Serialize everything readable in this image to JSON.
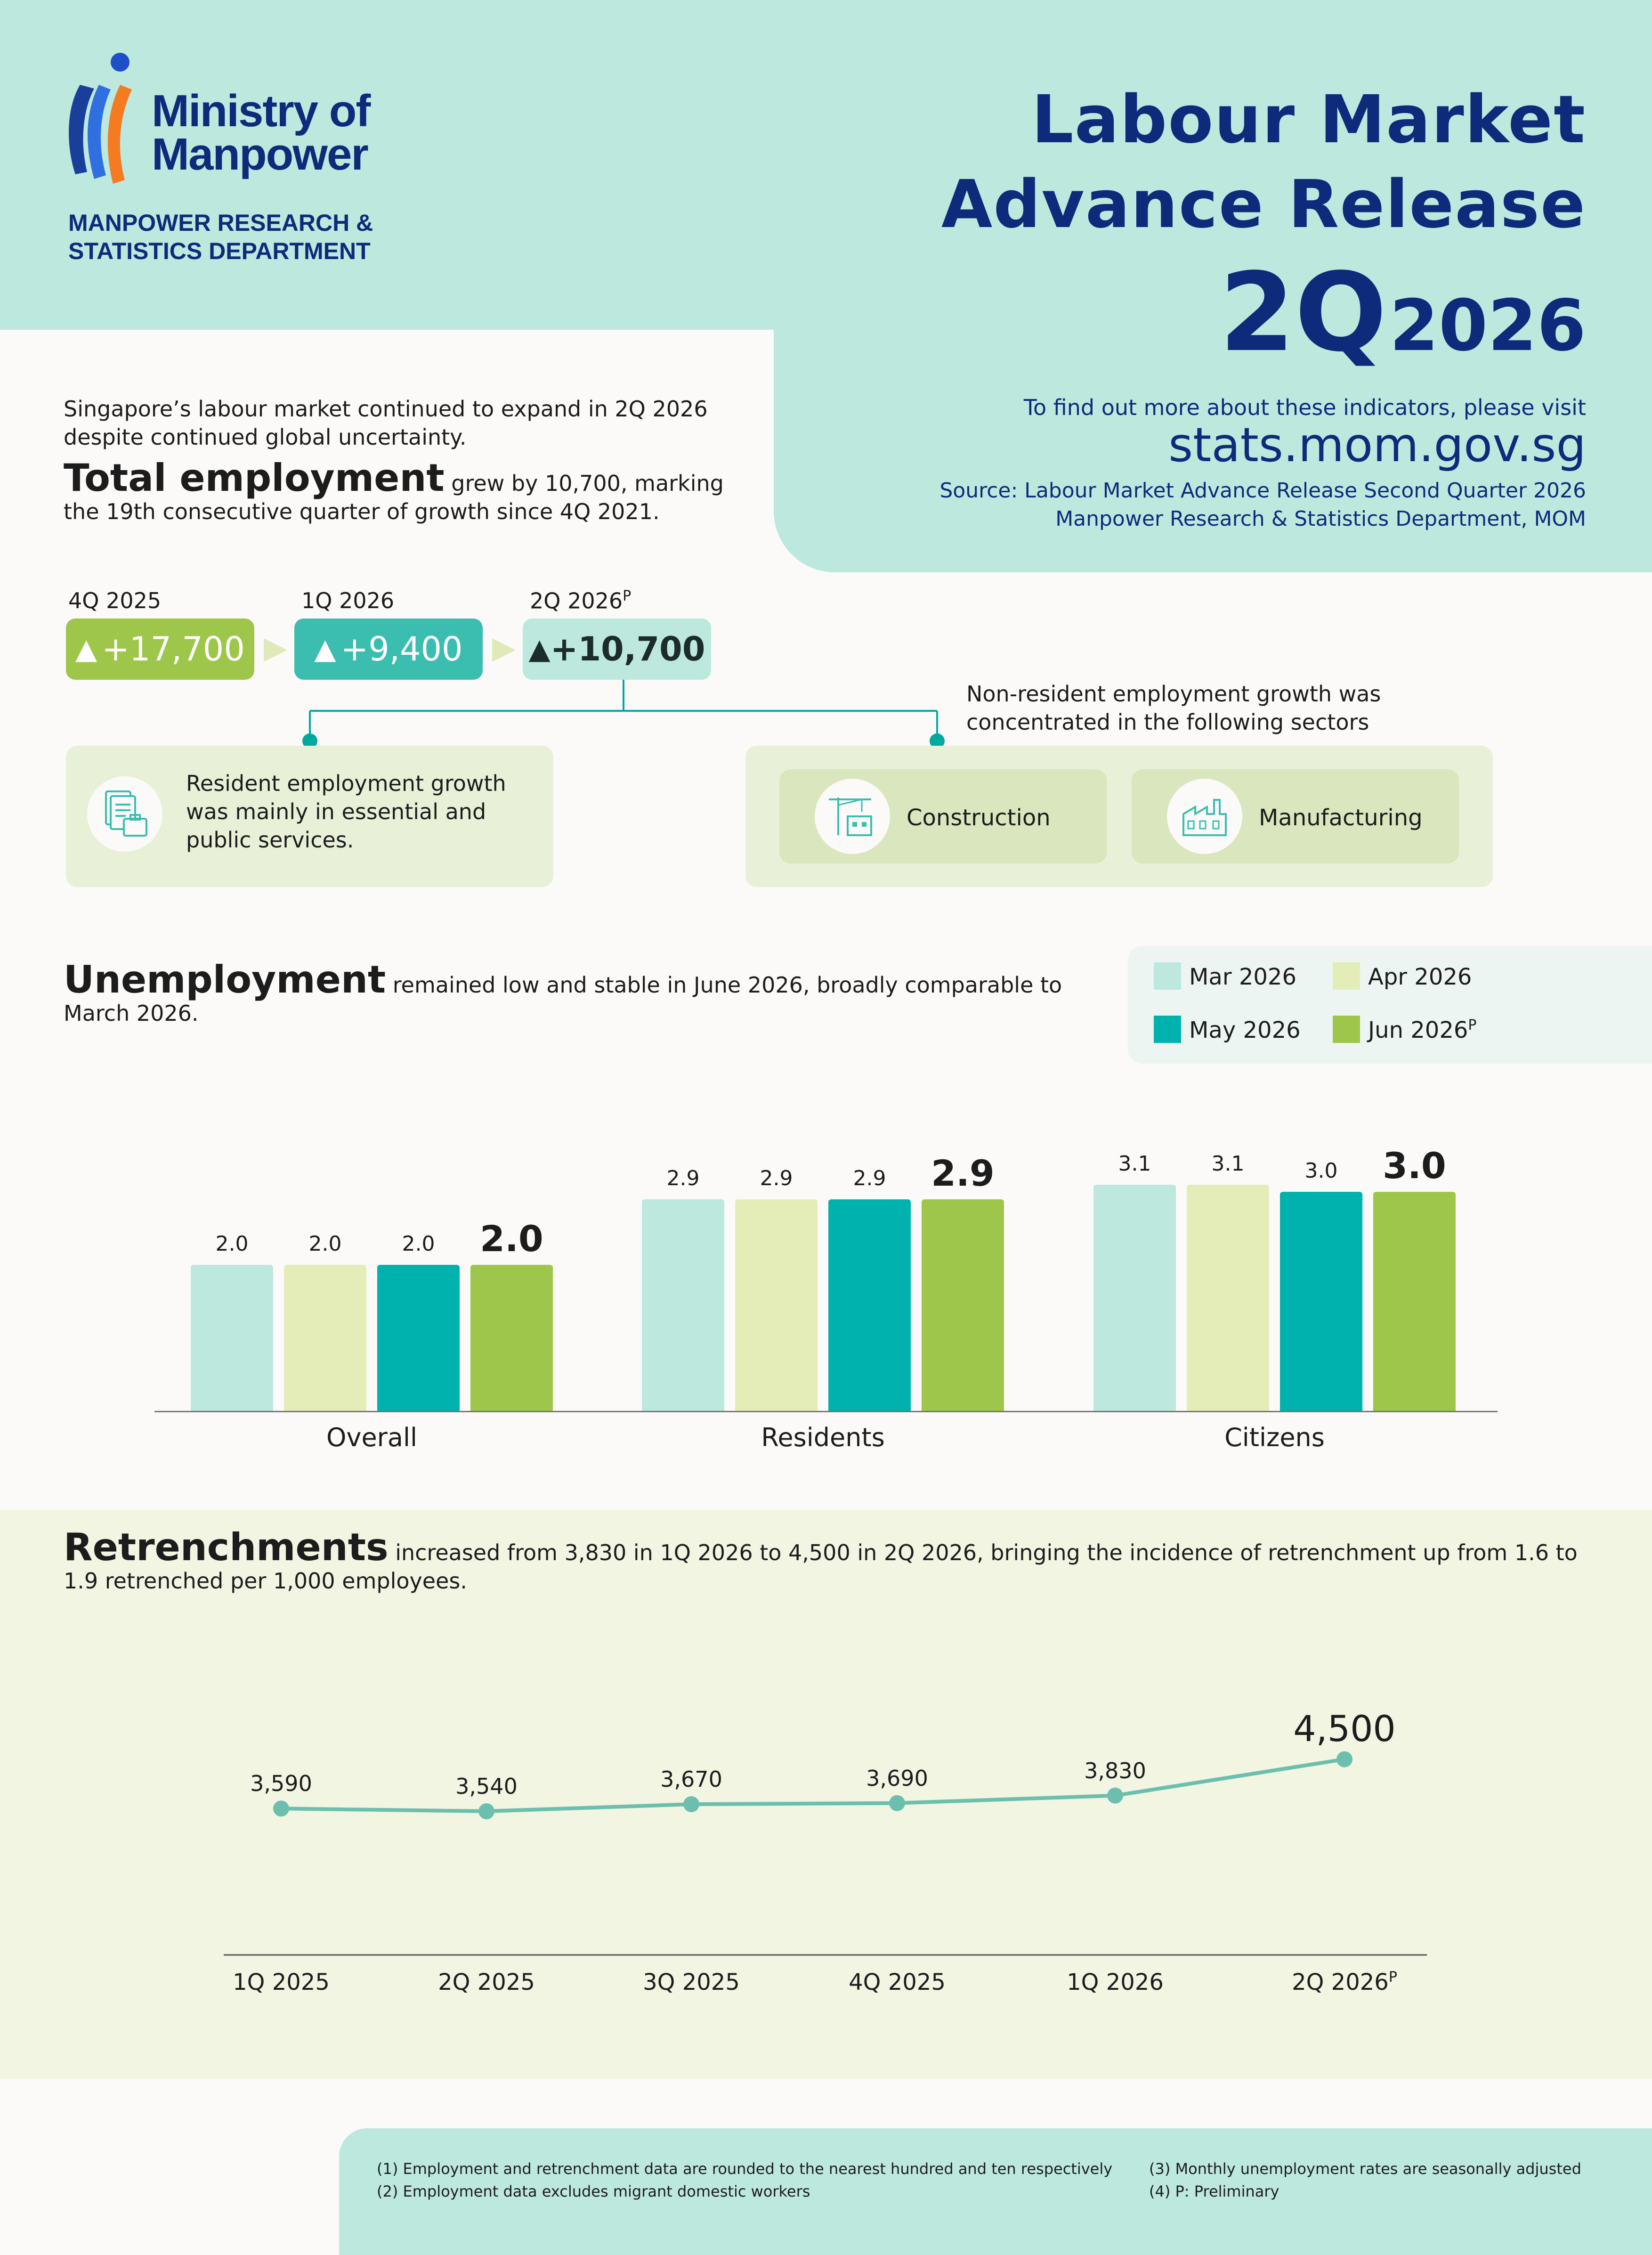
{
  "header": {
    "logo_line1": "Ministry of",
    "logo_line2": "Manpower",
    "dept_line1": "MANPOWER RESEARCH &",
    "dept_line2": "STATISTICS DEPARTMENT",
    "title_line1": "Labour Market",
    "title_line2": "Advance Release",
    "quarter": "2Q",
    "year": "2026",
    "visit_text": "To find out more about these indicators, please visit",
    "url": "stats.mom.gov.sg",
    "source_line1": "Source: Labour Market Advance Release Second Quarter 2026",
    "source_line2": "Manpower Research & Statistics Department, MOM",
    "colors": {
      "navy": "#0d2b7a",
      "mint": "#bce8de"
    }
  },
  "employment": {
    "intro": "Singapore’s labour market continued to expand in 2Q 2026 despite continued global uncertainty.",
    "heading": "Total employment",
    "heading_rest_line1": " grew by 10,700, marking",
    "heading_rest_line2": "the 19th consecutive quarter of growth since 4Q 2021.",
    "quarters": [
      {
        "label": "4Q 2025",
        "sup": "",
        "value": "+17,700",
        "color": "#9ec64a"
      },
      {
        "label": "1Q 2026",
        "sup": "",
        "value": "+9,400",
        "color": "#3bbdb0"
      },
      {
        "label": "2Q 2026",
        "sup": "P",
        "value": "+10,700",
        "color": "#bce8de"
      }
    ],
    "resident_text": "Resident employment growth was mainly in essential and public services.",
    "nonresident_text": "Non-resident employment growth was concentrated in the following sectors",
    "sectors": [
      "Construction",
      "Manufacturing"
    ],
    "icons": [
      "documents-briefcase-icon",
      "construction-crane-icon",
      "factory-icon"
    ]
  },
  "unemployment": {
    "heading": "Unemployment",
    "heading_rest": " remained low and stable in June 2026, broadly comparable to March 2026."
  },
  "retrenchments": {
    "heading": "Retrenchments",
    "heading_rest": " increased from 3,830 in 1Q 2026 to 4,500 in 2Q 2026, bringing the incidence of retrenchment up from 1.6 to 1.9 retrenched per 1,000 employees."
  },
  "chart_data": [
    {
      "type": "bar",
      "categories": [
        "Overall",
        "Residents",
        "Citizens"
      ],
      "series": [
        {
          "name": "Mar 2026",
          "values": [
            2.0,
            2.9,
            3.1
          ],
          "color": "#bce8de"
        },
        {
          "name": "Apr 2026",
          "values": [
            2.0,
            2.9,
            3.1
          ],
          "color": "#e4edb8"
        },
        {
          "name": "May 2026",
          "values": [
            2.0,
            2.9,
            3.0
          ],
          "color": "#00b2ad"
        },
        {
          "name": "Jun 2026",
          "sup": "P",
          "values": [
            2.0,
            2.9,
            3.0
          ],
          "color": "#9ec64a"
        }
      ],
      "value_labels": [
        [
          "2.0",
          "2.0",
          "2.0",
          "2.0"
        ],
        [
          "2.9",
          "2.9",
          "2.9",
          "2.9"
        ],
        [
          "3.1",
          "3.1",
          "3.0",
          "3.0"
        ]
      ],
      "ylim": [
        0,
        3.3
      ],
      "legend": "top-right"
    },
    {
      "type": "line",
      "x": [
        "1Q 2025",
        "2Q 2025",
        "3Q 2025",
        "4Q 2025",
        "1Q 2026",
        "2Q 2026"
      ],
      "x_sup": [
        "",
        "",
        "",
        "",
        "",
        "P"
      ],
      "series": [
        {
          "values": [
            3590,
            3540,
            3670,
            3690,
            3830,
            4500
          ],
          "color": "#6cbfae"
        }
      ],
      "value_labels": [
        "3,590",
        "3,540",
        "3,670",
        "3,690",
        "3,830",
        "4,500"
      ]
    }
  ],
  "footnotes": {
    "n1": "(1) Employment and retrenchment data are rounded to the nearest hundred and ten respectively",
    "n2": "(2) Employment data excludes migrant domestic workers",
    "n3": "(3) Monthly unemployment rates are seasonally adjusted",
    "n4": "(4) P: Preliminary"
  }
}
